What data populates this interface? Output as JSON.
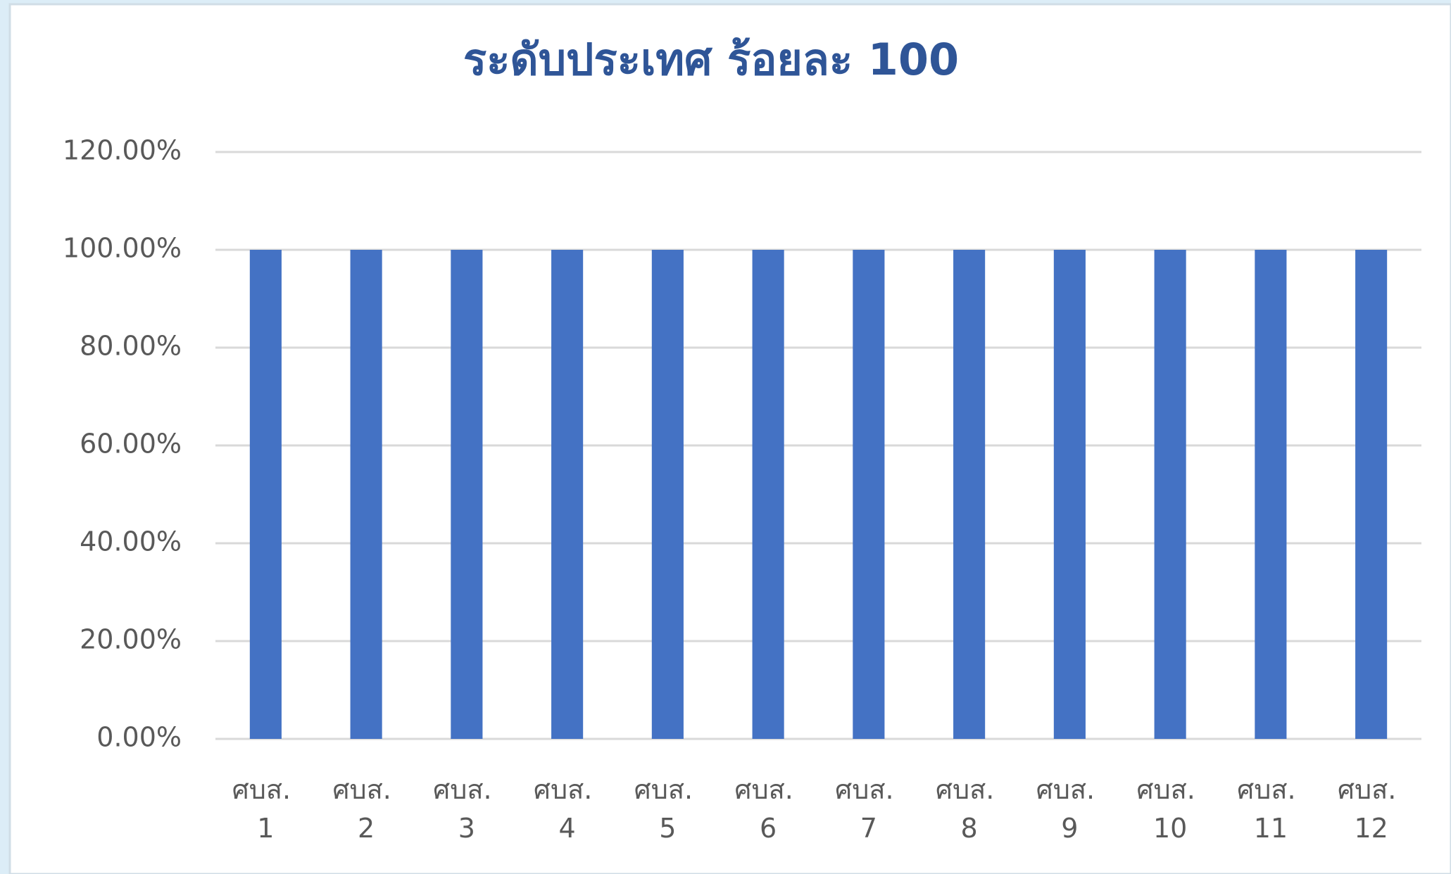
{
  "chart_data": {
    "type": "bar",
    "title": "ระดับประเทศ ร้อยละ 100",
    "categories": [
      "ศบส. 1",
      "ศบส. 2",
      "ศบส. 3",
      "ศบส. 4",
      "ศบส. 5",
      "ศบส. 6",
      "ศบส. 7",
      "ศบส. 8",
      "ศบส. 9",
      "ศบส. 10",
      "ศบส. 11",
      "ศบส. 12"
    ],
    "values": [
      100,
      100,
      100,
      100,
      100,
      100,
      100,
      100,
      100,
      100,
      100,
      100
    ],
    "color": "#4472c4",
    "ylim": [
      0,
      120
    ],
    "yticks": [
      {
        "value": 0,
        "label": "0.00%"
      },
      {
        "value": 20,
        "label": "20.00%"
      },
      {
        "value": 40,
        "label": "40.00%"
      },
      {
        "value": 60,
        "label": "60.00%"
      },
      {
        "value": 80,
        "label": "80.00%"
      },
      {
        "value": 100,
        "label": "100.00%"
      },
      {
        "value": 120,
        "label": "120.00%"
      }
    ],
    "grid": true
  }
}
